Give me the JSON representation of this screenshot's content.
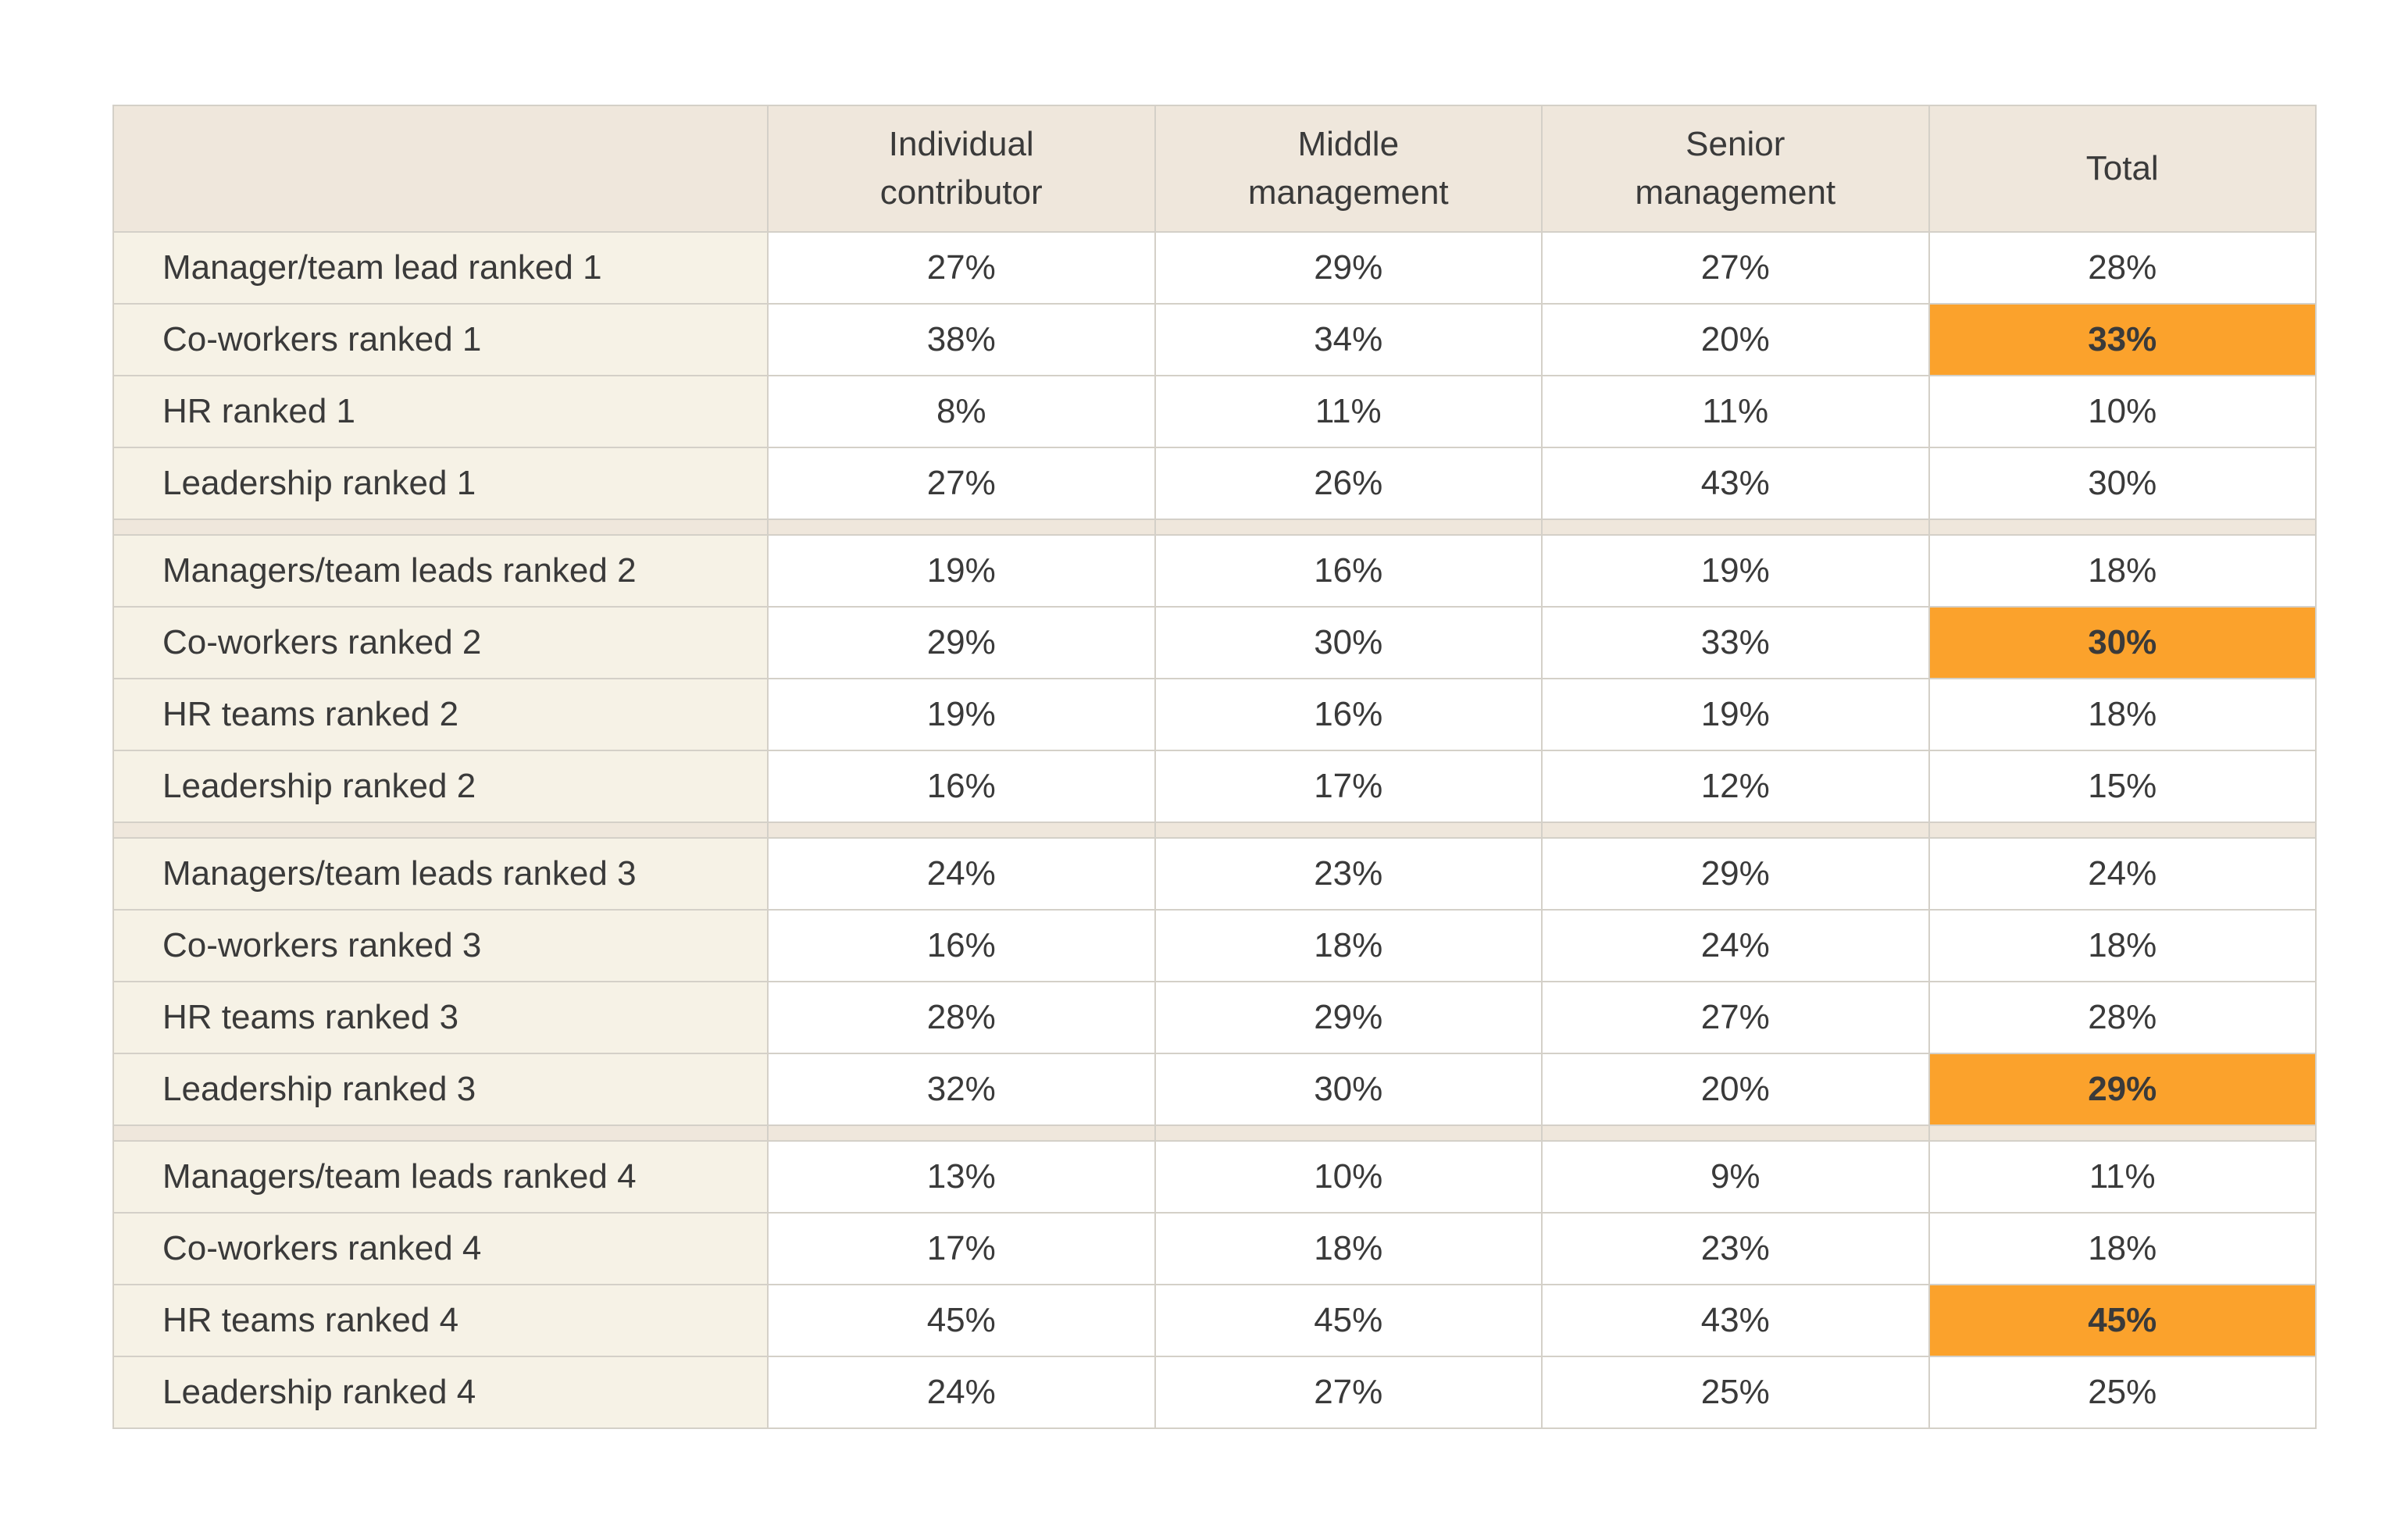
{
  "chart_data": {
    "type": "table",
    "columns": [
      "",
      "Individual contributor",
      "Middle management",
      "Senior management",
      "Total"
    ],
    "groups": [
      {
        "rows": [
          {
            "label": "Manager/team lead ranked 1",
            "values": [
              "27%",
              "29%",
              "27%",
              "28%"
            ],
            "highlight_total": false
          },
          {
            "label": "Co-workers ranked 1",
            "values": [
              "38%",
              "34%",
              "20%",
              "33%"
            ],
            "highlight_total": true
          },
          {
            "label": "HR ranked 1",
            "values": [
              "8%",
              "11%",
              "11%",
              "10%"
            ],
            "highlight_total": false
          },
          {
            "label": "Leadership ranked 1",
            "values": [
              "27%",
              "26%",
              "43%",
              "30%"
            ],
            "highlight_total": false
          }
        ]
      },
      {
        "rows": [
          {
            "label": "Managers/team leads ranked 2",
            "values": [
              "19%",
              "16%",
              "19%",
              "18%"
            ],
            "highlight_total": false
          },
          {
            "label": "Co-workers ranked 2",
            "values": [
              "29%",
              "30%",
              "33%",
              "30%"
            ],
            "highlight_total": true
          },
          {
            "label": "HR teams ranked 2",
            "values": [
              "19%",
              "16%",
              "19%",
              "18%"
            ],
            "highlight_total": false
          },
          {
            "label": "Leadership ranked 2",
            "values": [
              "16%",
              "17%",
              "12%",
              "15%"
            ],
            "highlight_total": false
          }
        ]
      },
      {
        "rows": [
          {
            "label": "Managers/team leads ranked 3",
            "values": [
              "24%",
              "23%",
              "29%",
              "24%"
            ],
            "highlight_total": false
          },
          {
            "label": "Co-workers ranked 3",
            "values": [
              "16%",
              "18%",
              "24%",
              "18%"
            ],
            "highlight_total": false
          },
          {
            "label": "HR teams ranked 3",
            "values": [
              "28%",
              "29%",
              "27%",
              "28%"
            ],
            "highlight_total": false
          },
          {
            "label": "Leadership ranked 3",
            "values": [
              "32%",
              "30%",
              "20%",
              "29%"
            ],
            "highlight_total": true
          }
        ]
      },
      {
        "rows": [
          {
            "label": "Managers/team leads ranked 4",
            "values": [
              "13%",
              "10%",
              "9%",
              "11%"
            ],
            "highlight_total": false
          },
          {
            "label": "Co-workers ranked 4",
            "values": [
              "17%",
              "18%",
              "23%",
              "18%"
            ],
            "highlight_total": false
          },
          {
            "label": "HR teams ranked 4",
            "values": [
              "45%",
              "45%",
              "43%",
              "45%"
            ],
            "highlight_total": true
          },
          {
            "label": "Leadership ranked 4",
            "values": [
              "24%",
              "27%",
              "25%",
              "25%"
            ],
            "highlight_total": false
          }
        ]
      }
    ],
    "colors": {
      "header_bg": "#efe7dc",
      "label_bg": "#f6f2e6",
      "highlight": "#fba22c",
      "border": "#d4d0c8"
    }
  }
}
